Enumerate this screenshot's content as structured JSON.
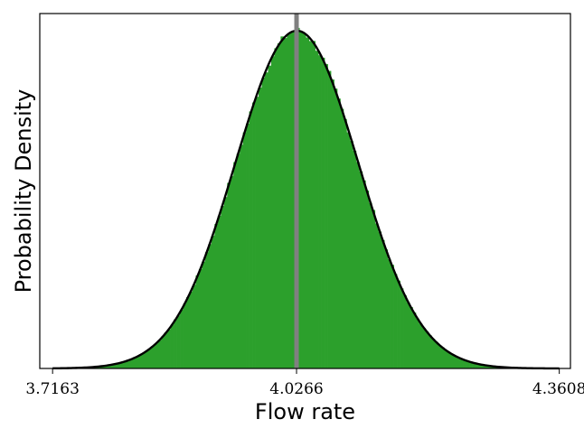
{
  "chart_data": {
    "type": "histogram",
    "title": "",
    "xlabel": "Flow rate",
    "ylabel": "Probability Density",
    "xlim": [
      3.7,
      4.375
    ],
    "x_ticks": [
      "3.7163",
      "4.0266",
      "4.3608"
    ],
    "x_tick_values": [
      3.7163,
      4.0266,
      4.3608
    ],
    "y_ticks_shown": false,
    "grid": false,
    "legend": "none",
    "bars": {
      "color": "#2ca02c",
      "bin_width": 0.004,
      "density_curve": {
        "color": "#000000",
        "shape": "approximately normal",
        "mean": 4.027,
        "std": 0.0785,
        "support": [
          3.7163,
          4.3608
        ]
      }
    },
    "reference_line": {
      "x": 4.0266,
      "color": "#808080"
    }
  }
}
